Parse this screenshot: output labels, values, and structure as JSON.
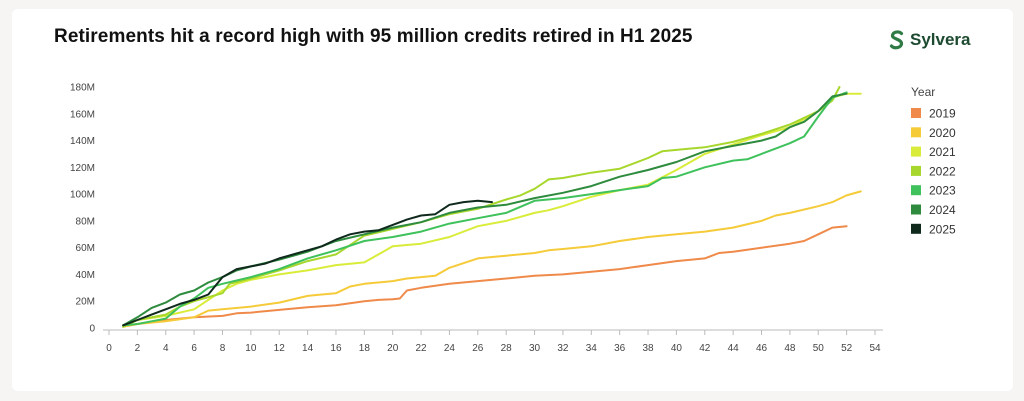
{
  "header": {
    "title": "Retirements hit a record high with 95 million credits retired in H1 2025",
    "logo_text": "Sylvera",
    "logo_icon": "sylvera-s-icon"
  },
  "colors": {
    "2019": "#ef8a4a",
    "2020": "#f5cb3a",
    "2021": "#d9ec3a",
    "2022": "#a7d72c",
    "2023": "#3fc15c",
    "2024": "#2e8b3e",
    "2025": "#0f2a1d"
  },
  "chart_data": {
    "type": "line",
    "title": "Retirements hit a record high with 95 million credits retired in H1 2025",
    "xlabel": "",
    "ylabel": "",
    "xlim": [
      0,
      54
    ],
    "ylim": [
      0,
      180
    ],
    "x_ticks": [
      "0",
      "2",
      "4",
      "6",
      "8",
      "10",
      "12",
      "14",
      "16",
      "18",
      "20",
      "22",
      "24",
      "26",
      "28",
      "30",
      "32",
      "34",
      "36",
      "38",
      "40",
      "42",
      "44",
      "46",
      "48",
      "50",
      "52",
      "54"
    ],
    "y_ticks": [
      "0",
      "20M",
      "40M",
      "60M",
      "80M",
      "100M",
      "120M",
      "140M",
      "160M",
      "180M"
    ],
    "legend_title": "Year",
    "legend_position": "right",
    "grid": false,
    "series": [
      {
        "name": "2019",
        "points": [
          [
            1,
            1
          ],
          [
            2,
            3
          ],
          [
            4,
            6
          ],
          [
            6,
            8
          ],
          [
            8,
            9
          ],
          [
            9,
            11
          ],
          [
            10,
            11.5
          ],
          [
            12,
            13.5
          ],
          [
            14,
            15.5
          ],
          [
            16,
            17
          ],
          [
            18,
            20
          ],
          [
            19,
            21
          ],
          [
            20,
            21.5
          ],
          [
            20.5,
            22
          ],
          [
            21,
            28
          ],
          [
            22,
            30
          ],
          [
            24,
            33
          ],
          [
            26,
            35
          ],
          [
            28,
            37
          ],
          [
            30,
            39
          ],
          [
            32,
            40
          ],
          [
            34,
            42
          ],
          [
            36,
            44
          ],
          [
            38,
            47
          ],
          [
            40,
            50
          ],
          [
            42,
            52
          ],
          [
            43,
            56
          ],
          [
            44,
            57
          ],
          [
            46,
            60
          ],
          [
            48,
            63
          ],
          [
            49,
            65
          ],
          [
            50,
            70
          ],
          [
            51,
            75
          ],
          [
            52,
            76
          ]
        ]
      },
      {
        "name": "2020",
        "points": [
          [
            1,
            1
          ],
          [
            2,
            3
          ],
          [
            4,
            5
          ],
          [
            6,
            8
          ],
          [
            7,
            13
          ],
          [
            8,
            14
          ],
          [
            10,
            16
          ],
          [
            12,
            19
          ],
          [
            14,
            24
          ],
          [
            15,
            25
          ],
          [
            16,
            26
          ],
          [
            17,
            31
          ],
          [
            18,
            33
          ],
          [
            20,
            35
          ],
          [
            21,
            37
          ],
          [
            22,
            38
          ],
          [
            23,
            39
          ],
          [
            24,
            45
          ],
          [
            26,
            52
          ],
          [
            27,
            53
          ],
          [
            28,
            54
          ],
          [
            30,
            56
          ],
          [
            31,
            58
          ],
          [
            32,
            59
          ],
          [
            34,
            61
          ],
          [
            36,
            65
          ],
          [
            38,
            68
          ],
          [
            40,
            70
          ],
          [
            42,
            72
          ],
          [
            44,
            75
          ],
          [
            46,
            80
          ],
          [
            47,
            84
          ],
          [
            48,
            86
          ],
          [
            50,
            91
          ],
          [
            51,
            94
          ],
          [
            52,
            99
          ],
          [
            53,
            102
          ]
        ]
      },
      {
        "name": "2021",
        "points": [
          [
            1,
            1
          ],
          [
            2,
            6
          ],
          [
            4,
            9
          ],
          [
            6,
            14
          ],
          [
            8,
            28
          ],
          [
            9,
            33
          ],
          [
            10,
            36
          ],
          [
            12,
            40
          ],
          [
            14,
            43
          ],
          [
            16,
            47
          ],
          [
            18,
            49
          ],
          [
            19,
            55
          ],
          [
            20,
            61
          ],
          [
            22,
            63
          ],
          [
            24,
            68
          ],
          [
            26,
            76
          ],
          [
            28,
            80
          ],
          [
            30,
            86
          ],
          [
            31,
            88
          ],
          [
            32,
            91
          ],
          [
            34,
            98
          ],
          [
            36,
            103
          ],
          [
            38,
            107
          ],
          [
            40,
            118
          ],
          [
            42,
            130
          ],
          [
            44,
            137
          ],
          [
            46,
            144
          ],
          [
            48,
            150
          ],
          [
            50,
            162
          ],
          [
            51,
            172
          ],
          [
            52,
            175
          ],
          [
            53,
            175
          ]
        ]
      },
      {
        "name": "2022",
        "points": [
          [
            1,
            1
          ],
          [
            2,
            6
          ],
          [
            4,
            10
          ],
          [
            5,
            16
          ],
          [
            6,
            20
          ],
          [
            8,
            26
          ],
          [
            8.5,
            33
          ],
          [
            10,
            37
          ],
          [
            12,
            43
          ],
          [
            14,
            50
          ],
          [
            16,
            55
          ],
          [
            18,
            69
          ],
          [
            20,
            74
          ],
          [
            22,
            79
          ],
          [
            24,
            85
          ],
          [
            26,
            89
          ],
          [
            28,
            96
          ],
          [
            29,
            99
          ],
          [
            30,
            104
          ],
          [
            31,
            111
          ],
          [
            32,
            112
          ],
          [
            34,
            116
          ],
          [
            36,
            119
          ],
          [
            38,
            127
          ],
          [
            39,
            132
          ],
          [
            40,
            133
          ],
          [
            42,
            135
          ],
          [
            44,
            139
          ],
          [
            46,
            145
          ],
          [
            48,
            152
          ],
          [
            50,
            162
          ],
          [
            51,
            170
          ],
          [
            51.5,
            180
          ]
        ]
      },
      {
        "name": "2023",
        "points": [
          [
            1,
            2
          ],
          [
            2,
            3
          ],
          [
            3,
            5
          ],
          [
            4,
            7
          ],
          [
            5,
            16
          ],
          [
            6,
            22
          ],
          [
            7,
            30
          ],
          [
            8,
            33
          ],
          [
            10,
            38
          ],
          [
            12,
            44
          ],
          [
            14,
            52
          ],
          [
            16,
            58
          ],
          [
            18,
            65
          ],
          [
            20,
            68
          ],
          [
            22,
            72
          ],
          [
            24,
            78
          ],
          [
            26,
            82
          ],
          [
            28,
            86
          ],
          [
            30,
            95
          ],
          [
            32,
            97
          ],
          [
            34,
            100
          ],
          [
            36,
            103
          ],
          [
            38,
            106
          ],
          [
            39,
            112
          ],
          [
            40,
            113
          ],
          [
            42,
            120
          ],
          [
            44,
            125
          ],
          [
            45,
            126
          ],
          [
            46,
            130
          ],
          [
            48,
            138
          ],
          [
            49,
            143
          ],
          [
            50,
            158
          ],
          [
            51,
            172
          ],
          [
            52,
            176
          ]
        ]
      },
      {
        "name": "2024",
        "points": [
          [
            1,
            2
          ],
          [
            2,
            8
          ],
          [
            3,
            15
          ],
          [
            4,
            19
          ],
          [
            5,
            25
          ],
          [
            6,
            28
          ],
          [
            7,
            34
          ],
          [
            8,
            38
          ],
          [
            9,
            43
          ],
          [
            10,
            46
          ],
          [
            12,
            51
          ],
          [
            14,
            57
          ],
          [
            16,
            65
          ],
          [
            18,
            70
          ],
          [
            20,
            75
          ],
          [
            22,
            79
          ],
          [
            24,
            86
          ],
          [
            26,
            90
          ],
          [
            28,
            92
          ],
          [
            30,
            97
          ],
          [
            32,
            101
          ],
          [
            34,
            106
          ],
          [
            36,
            113
          ],
          [
            38,
            118
          ],
          [
            40,
            124
          ],
          [
            42,
            132
          ],
          [
            44,
            136
          ],
          [
            46,
            140
          ],
          [
            47,
            143
          ],
          [
            48,
            150
          ],
          [
            49,
            154
          ],
          [
            50,
            162
          ],
          [
            51,
            173
          ],
          [
            52,
            175
          ]
        ]
      },
      {
        "name": "2025",
        "points": [
          [
            1,
            2
          ],
          [
            2,
            6
          ],
          [
            3,
            10
          ],
          [
            4,
            14
          ],
          [
            5,
            18
          ],
          [
            6,
            21
          ],
          [
            7,
            25
          ],
          [
            8,
            38
          ],
          [
            9,
            44
          ],
          [
            10,
            46
          ],
          [
            11,
            48
          ],
          [
            12,
            52
          ],
          [
            13,
            55
          ],
          [
            14,
            58
          ],
          [
            15,
            61
          ],
          [
            16,
            66
          ],
          [
            17,
            70
          ],
          [
            18,
            72
          ],
          [
            19,
            73
          ],
          [
            20,
            77
          ],
          [
            21,
            81
          ],
          [
            22,
            84
          ],
          [
            23,
            85
          ],
          [
            24,
            92
          ],
          [
            25,
            94
          ],
          [
            26,
            95
          ],
          [
            27,
            94
          ]
        ]
      }
    ]
  }
}
